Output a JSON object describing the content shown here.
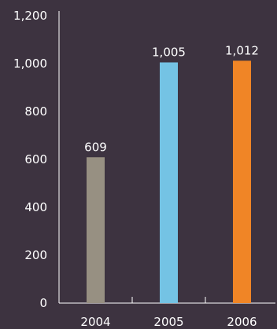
{
  "chart_data": {
    "type": "bar",
    "title": "",
    "xlabel": "",
    "ylabel": "",
    "categories": [
      "2004",
      "2005",
      "2006"
    ],
    "values": [
      609,
      1005,
      1012
    ],
    "data_labels": [
      "609",
      "1,005",
      "1,012"
    ],
    "bar_colors": [
      "#979082",
      "#74c3e4",
      "#f08526"
    ],
    "ylim": [
      0,
      1200
    ],
    "yticks": [
      0,
      200,
      400,
      600,
      800,
      1000,
      1200
    ],
    "ytick_labels": [
      "0",
      "200",
      "400",
      "600",
      "800",
      "1,000",
      "1,200"
    ],
    "grid": false,
    "legend": "none",
    "background_color": "#3d3340",
    "axis_color": "#ffffff",
    "text_color": "#ffffff"
  }
}
